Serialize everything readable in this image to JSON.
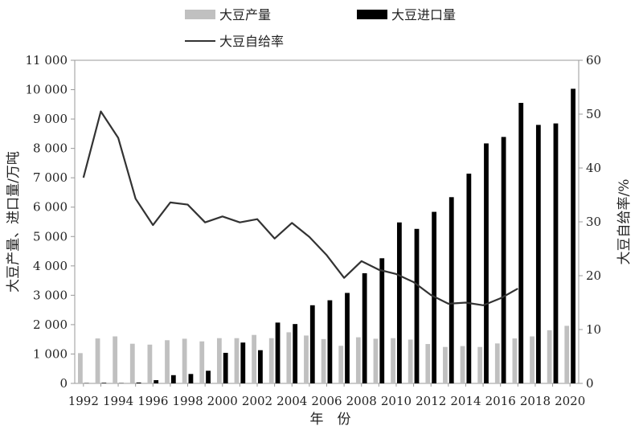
{
  "chart_data": {
    "type": "bar",
    "x_years": [
      1992,
      1993,
      1994,
      1995,
      1996,
      1997,
      1998,
      1999,
      2000,
      2001,
      2002,
      2003,
      2004,
      2005,
      2006,
      2007,
      2008,
      2009,
      2010,
      2011,
      2012,
      2013,
      2014,
      2015,
      2016,
      2017,
      2018,
      2019,
      2020
    ],
    "x_tick_labels": [
      "1992",
      "1994",
      "1996",
      "1998",
      "2000",
      "2002",
      "2004",
      "2006",
      "2008",
      "2010",
      "2012",
      "2014",
      "2016",
      "2018",
      "2020"
    ],
    "xlabel": "年　份",
    "ylabel_left": "大豆产量、进口量/万吨",
    "ylabel_right": "大豆自给率/%",
    "ylim_left": [
      0,
      11000
    ],
    "ylim_right": [
      0,
      60
    ],
    "y_left_tick_labels": [
      "0",
      "1 000",
      "2 000",
      "3 000",
      "4 000",
      "5 000",
      "6 000",
      "7 000",
      "8 000",
      "9 000",
      "10 000",
      "11 000"
    ],
    "y_right_tick_labels": [
      "0",
      "10",
      "20",
      "30",
      "40",
      "50",
      "60"
    ],
    "grid": false,
    "legend_position": "top",
    "series": [
      {
        "name": "大豆产量",
        "kind": "bar",
        "color": "#c0c0c0",
        "values": [
          1030,
          1530,
          1600,
          1350,
          1320,
          1470,
          1520,
          1430,
          1540,
          1540,
          1650,
          1540,
          1740,
          1630,
          1510,
          1280,
          1570,
          1520,
          1540,
          1490,
          1340,
          1240,
          1270,
          1240,
          1360,
          1530,
          1600,
          1810,
          1960
        ]
      },
      {
        "name": "大豆进口量",
        "kind": "bar",
        "color": "#000000",
        "values": [
          10,
          20,
          10,
          30,
          110,
          280,
          320,
          430,
          1040,
          1390,
          1130,
          2070,
          2020,
          2660,
          2830,
          3080,
          3750,
          4260,
          5480,
          5260,
          5840,
          6340,
          7140,
          8170,
          8390,
          9550,
          8800,
          8850,
          10030
        ]
      },
      {
        "name": "大豆自给率",
        "kind": "line",
        "axis": "right",
        "color": "#333333",
        "x": [
          1992,
          1993,
          1994,
          1995,
          1996,
          1997,
          1998,
          1999,
          2000,
          2001,
          2002,
          2003,
          2004,
          2005,
          2006,
          2007,
          2008,
          2009,
          2010,
          2011,
          2012,
          2013,
          2014,
          2015,
          2016,
          2017
        ],
        "values": [
          38.2,
          50.5,
          45.6,
          34.3,
          29.4,
          33.6,
          33.2,
          29.9,
          31.0,
          29.9,
          30.5,
          26.9,
          29.8,
          27.2,
          23.8,
          19.6,
          22.7,
          21.1,
          20.3,
          18.8,
          16.4,
          14.8,
          15.0,
          14.5,
          15.8,
          17.6
        ]
      }
    ]
  }
}
